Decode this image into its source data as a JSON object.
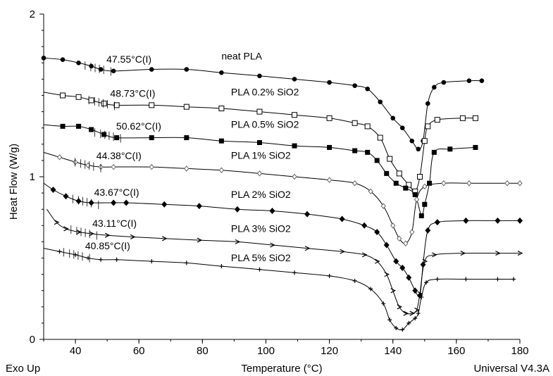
{
  "chart_data": {
    "type": "line",
    "title": "",
    "xlabel": "Temperature (°C)",
    "ylabel": "Heat Flow (W/g)",
    "xlim": [
      30,
      180
    ],
    "ylim": [
      0,
      2
    ],
    "x_ticks": [
      "40",
      "60",
      "80",
      "100",
      "120",
      "140",
      "160",
      "180"
    ],
    "y_ticks": [
      "0",
      "1",
      "2"
    ],
    "corner_left": "Exo Up",
    "corner_right": "Universal V4.3A",
    "grid": false,
    "series": [
      {
        "name": "neat PLA",
        "marker": "filled-circle",
        "glass_transition_label": "47.55°C(I)",
        "points": [
          [
            30,
            1.73
          ],
          [
            36,
            1.72
          ],
          [
            41,
            1.7
          ],
          [
            45,
            1.68
          ],
          [
            48,
            1.66
          ],
          [
            52,
            1.65
          ],
          [
            64,
            1.66
          ],
          [
            75,
            1.66
          ],
          [
            86,
            1.64
          ],
          [
            98,
            1.62
          ],
          [
            109,
            1.6
          ],
          [
            120,
            1.58
          ],
          [
            128,
            1.56
          ],
          [
            132,
            1.54
          ],
          [
            136,
            1.46
          ],
          [
            140,
            1.36
          ],
          [
            143,
            1.3
          ],
          [
            146,
            1.22
          ],
          [
            148,
            1.17
          ],
          [
            149.5,
            1.22
          ],
          [
            151,
            1.45
          ],
          [
            153,
            1.55
          ],
          [
            156,
            1.58
          ],
          [
            164,
            1.59
          ],
          [
            168,
            1.59
          ]
        ]
      },
      {
        "name": "PLA 0.2% SiO2",
        "marker": "open-square",
        "glass_transition_label": "48.73°C(I)",
        "points": [
          [
            30,
            1.52
          ],
          [
            36,
            1.5
          ],
          [
            41,
            1.49
          ],
          [
            45,
            1.47
          ],
          [
            49,
            1.45
          ],
          [
            53,
            1.44
          ],
          [
            64,
            1.44
          ],
          [
            75,
            1.43
          ],
          [
            86,
            1.42
          ],
          [
            98,
            1.4
          ],
          [
            109,
            1.38
          ],
          [
            120,
            1.36
          ],
          [
            128,
            1.33
          ],
          [
            132,
            1.31
          ],
          [
            136,
            1.24
          ],
          [
            139,
            1.11
          ],
          [
            142,
            1.02
          ],
          [
            145,
            0.95
          ],
          [
            147,
            0.91
          ],
          [
            148.5,
            1.0
          ],
          [
            150,
            1.22
          ],
          [
            151,
            1.31
          ],
          [
            154,
            1.35
          ],
          [
            162,
            1.36
          ],
          [
            166,
            1.36
          ]
        ]
      },
      {
        "name": "PLA 0.5% SiO2",
        "marker": "filled-square",
        "glass_transition_label": "50.62°C(I)",
        "points": [
          [
            30,
            1.32
          ],
          [
            36,
            1.31
          ],
          [
            41,
            1.31
          ],
          [
            45,
            1.29
          ],
          [
            49,
            1.26
          ],
          [
            53,
            1.24
          ],
          [
            64,
            1.24
          ],
          [
            75,
            1.24
          ],
          [
            86,
            1.22
          ],
          [
            98,
            1.21
          ],
          [
            109,
            1.19
          ],
          [
            120,
            1.18
          ],
          [
            128,
            1.16
          ],
          [
            132,
            1.15
          ],
          [
            135,
            1.1
          ],
          [
            138,
            1.02
          ],
          [
            141,
            0.96
          ],
          [
            144,
            0.93
          ],
          [
            147,
            0.89
          ],
          [
            149,
            0.76
          ],
          [
            150,
            0.83
          ],
          [
            151.5,
            0.96
          ],
          [
            153,
            1.15
          ],
          [
            158,
            1.17
          ],
          [
            166,
            1.18
          ]
        ]
      },
      {
        "name": "PLA 1% SiO2",
        "marker": "open-diamond",
        "glass_transition_label": "44.38°C(I)",
        "points": [
          [
            30,
            1.15
          ],
          [
            35,
            1.12
          ],
          [
            40,
            1.09
          ],
          [
            44,
            1.07
          ],
          [
            48,
            1.06
          ],
          [
            52,
            1.06
          ],
          [
            64,
            1.06
          ],
          [
            75,
            1.05
          ],
          [
            86,
            1.04
          ],
          [
            98,
            1.02
          ],
          [
            109,
            1.0
          ],
          [
            120,
            0.98
          ],
          [
            128,
            0.96
          ],
          [
            133,
            0.91
          ],
          [
            137,
            0.82
          ],
          [
            140,
            0.7
          ],
          [
            142,
            0.62
          ],
          [
            144,
            0.59
          ],
          [
            146,
            0.66
          ],
          [
            147.5,
            0.86
          ],
          [
            150,
            0.94
          ],
          [
            156,
            0.96
          ],
          [
            164,
            0.96
          ],
          [
            176,
            0.96
          ],
          [
            180,
            0.96
          ]
        ]
      },
      {
        "name": "PLA 2% SiO2",
        "marker": "filled-diamond",
        "glass_transition_label": "43.67°C(I)",
        "points": [
          [
            30,
            0.96
          ],
          [
            33,
            0.92
          ],
          [
            37,
            0.88
          ],
          [
            41,
            0.85
          ],
          [
            45,
            0.84
          ],
          [
            52,
            0.84
          ],
          [
            56,
            0.84
          ],
          [
            68,
            0.83
          ],
          [
            79,
            0.82
          ],
          [
            91,
            0.8
          ],
          [
            102,
            0.79
          ],
          [
            113,
            0.77
          ],
          [
            124,
            0.74
          ],
          [
            131,
            0.7
          ],
          [
            135,
            0.66
          ],
          [
            138,
            0.58
          ],
          [
            141,
            0.48
          ],
          [
            143,
            0.44
          ],
          [
            145,
            0.38
          ],
          [
            147,
            0.3
          ],
          [
            148.5,
            0.27
          ],
          [
            149.5,
            0.46
          ],
          [
            151,
            0.67
          ],
          [
            154,
            0.72
          ],
          [
            163,
            0.73
          ],
          [
            173,
            0.73
          ],
          [
            180,
            0.73
          ]
        ]
      },
      {
        "name": "PLA 3% SiO2",
        "marker": "arrow",
        "glass_transition_label": "43.11°C(I)",
        "points": [
          [
            31,
            0.8
          ],
          [
            34,
            0.72
          ],
          [
            37,
            0.68
          ],
          [
            41,
            0.66
          ],
          [
            45,
            0.65
          ],
          [
            50,
            0.64
          ],
          [
            58,
            0.63
          ],
          [
            68,
            0.62
          ],
          [
            79,
            0.61
          ],
          [
            91,
            0.6
          ],
          [
            102,
            0.58
          ],
          [
            113,
            0.56
          ],
          [
            124,
            0.54
          ],
          [
            131,
            0.52
          ],
          [
            135,
            0.48
          ],
          [
            138,
            0.4
          ],
          [
            140,
            0.3
          ],
          [
            142,
            0.2
          ],
          [
            144,
            0.16
          ],
          [
            146,
            0.16
          ],
          [
            147.5,
            0.18
          ],
          [
            148.5,
            0.28
          ],
          [
            150,
            0.48
          ],
          [
            153,
            0.52
          ],
          [
            162,
            0.53
          ],
          [
            173,
            0.53
          ],
          [
            180,
            0.53
          ]
        ]
      },
      {
        "name": "PLA 5% SiO2",
        "marker": "plus",
        "glass_transition_label": "40.85°C(I)",
        "points": [
          [
            30,
            0.56
          ],
          [
            35,
            0.54
          ],
          [
            40,
            0.52
          ],
          [
            44,
            0.5
          ],
          [
            48,
            0.49
          ],
          [
            53,
            0.49
          ],
          [
            64,
            0.48
          ],
          [
            75,
            0.47
          ],
          [
            86,
            0.45
          ],
          [
            98,
            0.43
          ],
          [
            109,
            0.41
          ],
          [
            120,
            0.39
          ],
          [
            128,
            0.36
          ],
          [
            133,
            0.31
          ],
          [
            137,
            0.22
          ],
          [
            139,
            0.12
          ],
          [
            141,
            0.07
          ],
          [
            143,
            0.06
          ],
          [
            145,
            0.1
          ],
          [
            147,
            0.13
          ],
          [
            148,
            0.16
          ],
          [
            149,
            0.26
          ],
          [
            150.5,
            0.35
          ],
          [
            154,
            0.37
          ],
          [
            163,
            0.37
          ],
          [
            173,
            0.37
          ],
          [
            178,
            0.37
          ]
        ]
      }
    ],
    "annotations": [
      {
        "text": "neat PLA",
        "x": 86,
        "y": 1.72
      },
      {
        "text": "PLA 0.2% SiO2",
        "x": 89,
        "y": 1.5
      },
      {
        "text": "PLA 0.5% SiO2",
        "x": 89,
        "y": 1.3
      },
      {
        "text": "PLA 1% SiO2",
        "x": 89,
        "y": 1.11
      },
      {
        "text": "PLA 2% SiO2",
        "x": 89,
        "y": 0.87
      },
      {
        "text": "PLA 3% SiO2",
        "x": 89,
        "y": 0.66
      },
      {
        "text": "PLA 5% SiO2",
        "x": 89,
        "y": 0.48
      }
    ]
  }
}
